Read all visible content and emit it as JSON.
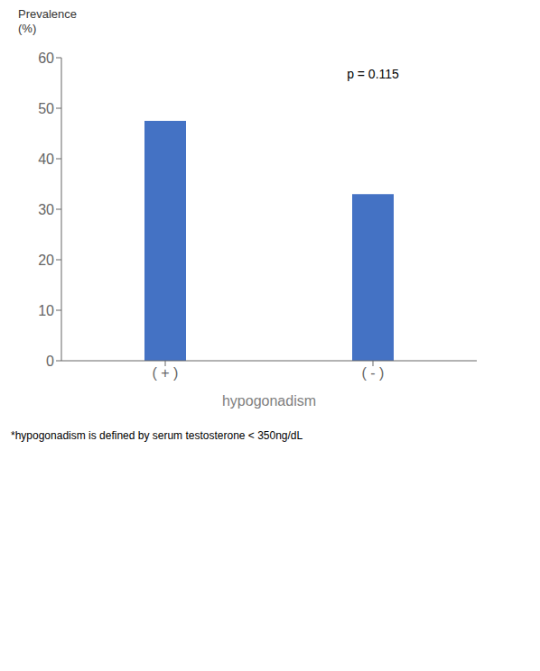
{
  "chart_data": {
    "type": "bar",
    "categories": [
      "( + )",
      "( - )"
    ],
    "values": [
      47.5,
      33.0
    ],
    "color": "#4472C4",
    "ylim": [
      0,
      60
    ],
    "yticks": [
      0,
      10,
      20,
      30,
      40,
      50,
      60
    ],
    "grid": false,
    "xlabel": "hypogonadism",
    "ylabel": [
      "Prevalence",
      "(%)"
    ],
    "annotations": [
      {
        "text": "p = 0.115",
        "y": 55
      }
    ],
    "footnote": "*hypogonadism is defined by serum testosterone < 350ng/dL"
  }
}
